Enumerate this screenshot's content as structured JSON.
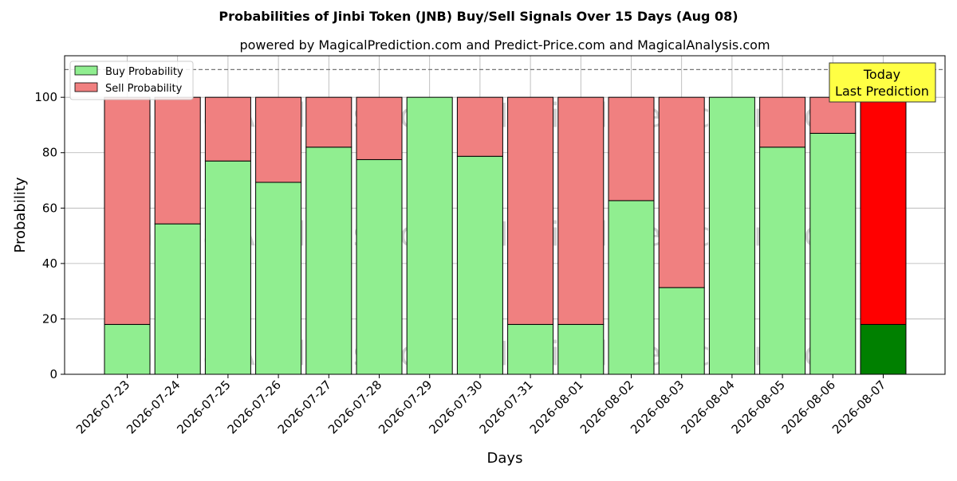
{
  "colors": {
    "buy": "#90ee90",
    "sell": "#f08080",
    "last_buy": "#008000",
    "last_sell": "#ff0000",
    "today_box": "#ffff44",
    "watermark": "#e06666"
  },
  "watermarks": [
    "MagicalAnalysis.com",
    "MagicalPrediction.com",
    "MagicalAnalysis.com",
    "MagicalPrediction.com",
    "MagicalAnalysis.com",
    "MagicalPrediction.com"
  ],
  "annotation": {
    "line1": "Today",
    "line2": "Last Prediction"
  },
  "chart_data": {
    "type": "bar",
    "stacked": true,
    "title": "Probabilities of Jinbi Token (JNB) Buy/Sell Signals Over 15 Days (Aug 08)",
    "subtitle": "powered by MagicalPrediction.com and Predict-Price.com and MagicalAnalysis.com",
    "xlabel": "Days",
    "ylabel": "Probability",
    "ylim": [
      0,
      115
    ],
    "yticks": [
      0,
      20,
      40,
      60,
      80,
      100
    ],
    "reference_line": 110,
    "grid": true,
    "legend_position": "top-left",
    "categories": [
      "2026-07-23",
      "2026-07-24",
      "2026-07-25",
      "2026-07-26",
      "2026-07-27",
      "2026-07-28",
      "2026-07-29",
      "2026-07-30",
      "2026-07-31",
      "2026-08-01",
      "2026-08-02",
      "2026-08-03",
      "2026-08-04",
      "2026-08-05",
      "2026-08-06",
      "2026-08-07"
    ],
    "series": [
      {
        "name": "Buy Probability",
        "values": [
          18,
          54.3,
          77,
          69.3,
          82,
          77.5,
          100,
          78.7,
          18,
          18,
          62.7,
          31.3,
          100,
          82,
          87,
          18
        ]
      },
      {
        "name": "Sell Probability",
        "values": [
          82,
          45.7,
          23,
          30.7,
          18,
          22.5,
          0,
          21.3,
          82,
          82,
          37.3,
          68.7,
          0,
          18,
          13,
          82
        ]
      }
    ]
  }
}
